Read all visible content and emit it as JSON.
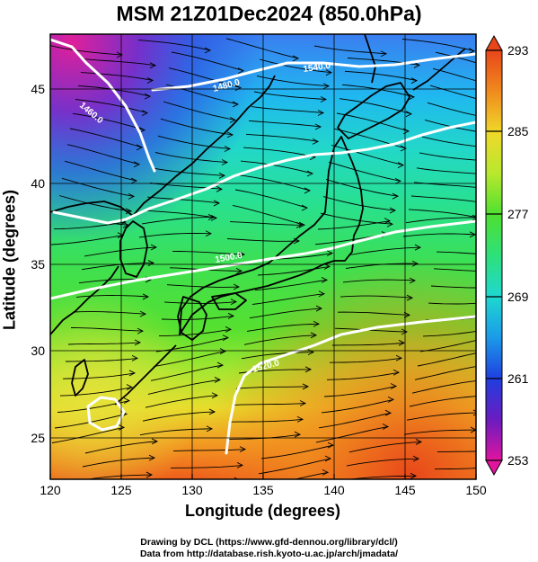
{
  "title": "MSM 21Z01Dec2024 (850.0hPa)",
  "x_axis": {
    "label": "Longitude (degrees)",
    "range": [
      120,
      150
    ],
    "ticks": [
      "120",
      "125",
      "130",
      "135",
      "140",
      "145",
      "150"
    ]
  },
  "y_axis": {
    "label": "Latitude  (degrees)",
    "range": [
      22.4,
      47.6
    ],
    "ticks": [
      "25",
      "30",
      "35",
      "40",
      "45"
    ]
  },
  "colorbar": {
    "range": [
      253,
      293
    ],
    "ticks": [
      "253",
      "261",
      "269",
      "277",
      "285",
      "293"
    ],
    "colors": [
      "#e0149e",
      "#6a1cc0",
      "#1f3fe0",
      "#1b9be8",
      "#1fd8d0",
      "#2ee07a",
      "#4fe030",
      "#b8e82e",
      "#f0d82a",
      "#f08a1e",
      "#e8461a"
    ]
  },
  "contour_labels": [
    "1460.0",
    "1480.0",
    "1500.0",
    "1520.0",
    "1540.0"
  ],
  "credits": {
    "line1": "Drawing by DCL (https://www.gfd-dennou.org/library/dcl/)",
    "line2": "Data from http://database.rish.kyoto-u.ac.jp/arch/jmadata/"
  }
}
